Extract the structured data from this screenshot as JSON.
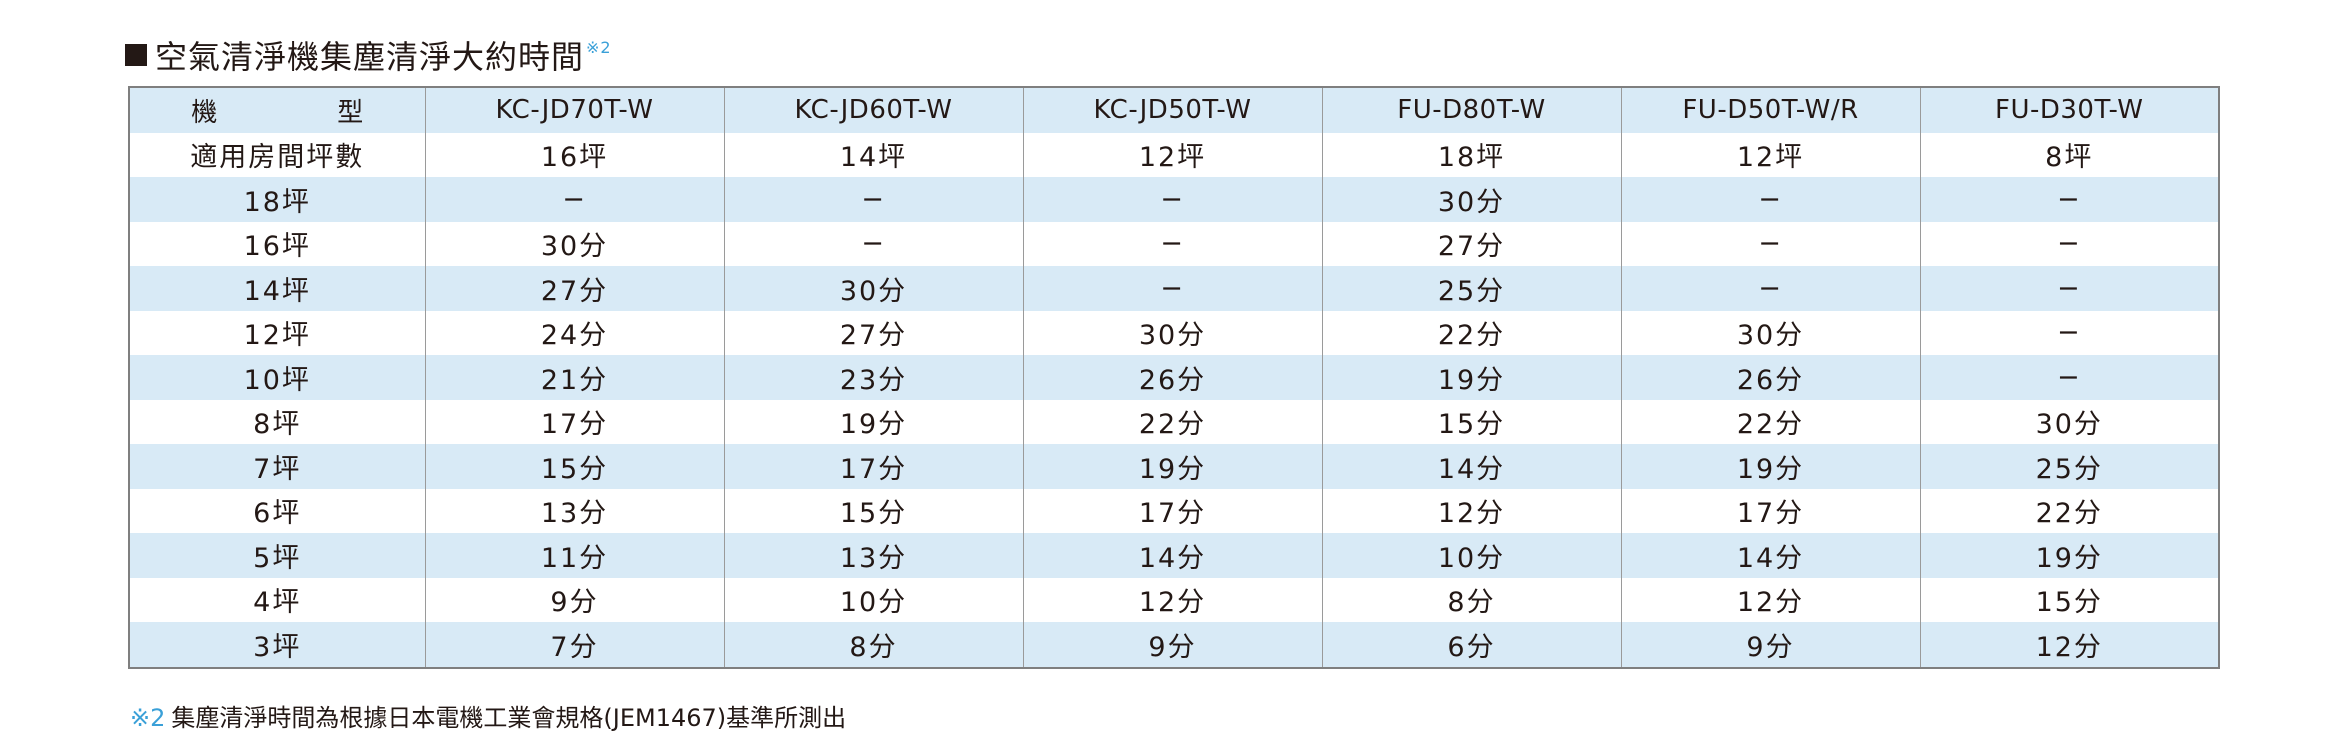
{
  "title": {
    "text": "空氣清淨機集塵清淨大約時間",
    "note_ref": "※2"
  },
  "table": {
    "header_label_parts": [
      "機",
      "型"
    ],
    "models": [
      "KC-JD70T-W",
      "KC-JD60T-W",
      "KC-JD50T-W",
      "FU-D80T-W",
      "FU-D50T-W/R",
      "FU-D30T-W"
    ],
    "applicable_label": "適用房間坪數",
    "applicable": [
      "16坪",
      "14坪",
      "12坪",
      "18坪",
      "12坪",
      "8坪"
    ],
    "rows": [
      {
        "room": "18坪",
        "times": [
          "−",
          "−",
          "−",
          "30分",
          "−",
          "−"
        ]
      },
      {
        "room": "16坪",
        "times": [
          "30分",
          "−",
          "−",
          "27分",
          "−",
          "−"
        ]
      },
      {
        "room": "14坪",
        "times": [
          "27分",
          "30分",
          "−",
          "25分",
          "−",
          "−"
        ]
      },
      {
        "room": "12坪",
        "times": [
          "24分",
          "27分",
          "30分",
          "22分",
          "30分",
          "−"
        ]
      },
      {
        "room": "10坪",
        "times": [
          "21分",
          "23分",
          "26分",
          "19分",
          "26分",
          "−"
        ]
      },
      {
        "room": "8坪",
        "times": [
          "17分",
          "19分",
          "22分",
          "15分",
          "22分",
          "30分"
        ]
      },
      {
        "room": "7坪",
        "times": [
          "15分",
          "17分",
          "19分",
          "14分",
          "19分",
          "25分"
        ]
      },
      {
        "room": "6坪",
        "times": [
          "13分",
          "15分",
          "17分",
          "12分",
          "17分",
          "22分"
        ]
      },
      {
        "room": "5坪",
        "times": [
          "11分",
          "13分",
          "14分",
          "10分",
          "14分",
          "19分"
        ]
      },
      {
        "room": "4坪",
        "times": [
          "9分",
          "10分",
          "12分",
          "8分",
          "12分",
          "15分"
        ]
      },
      {
        "room": "3坪",
        "times": [
          "7分",
          "8分",
          "9分",
          "6分",
          "9分",
          "12分"
        ]
      }
    ]
  },
  "footnote": {
    "mark": "※2",
    "text": "集塵清淨時間為根據日本電機工業會規格(JEM1467)基準所測出"
  },
  "colors": {
    "stripe": "#d8eaf6",
    "accent": "#3aa0d8",
    "border": "#7f7f7f",
    "text": "#231815"
  }
}
